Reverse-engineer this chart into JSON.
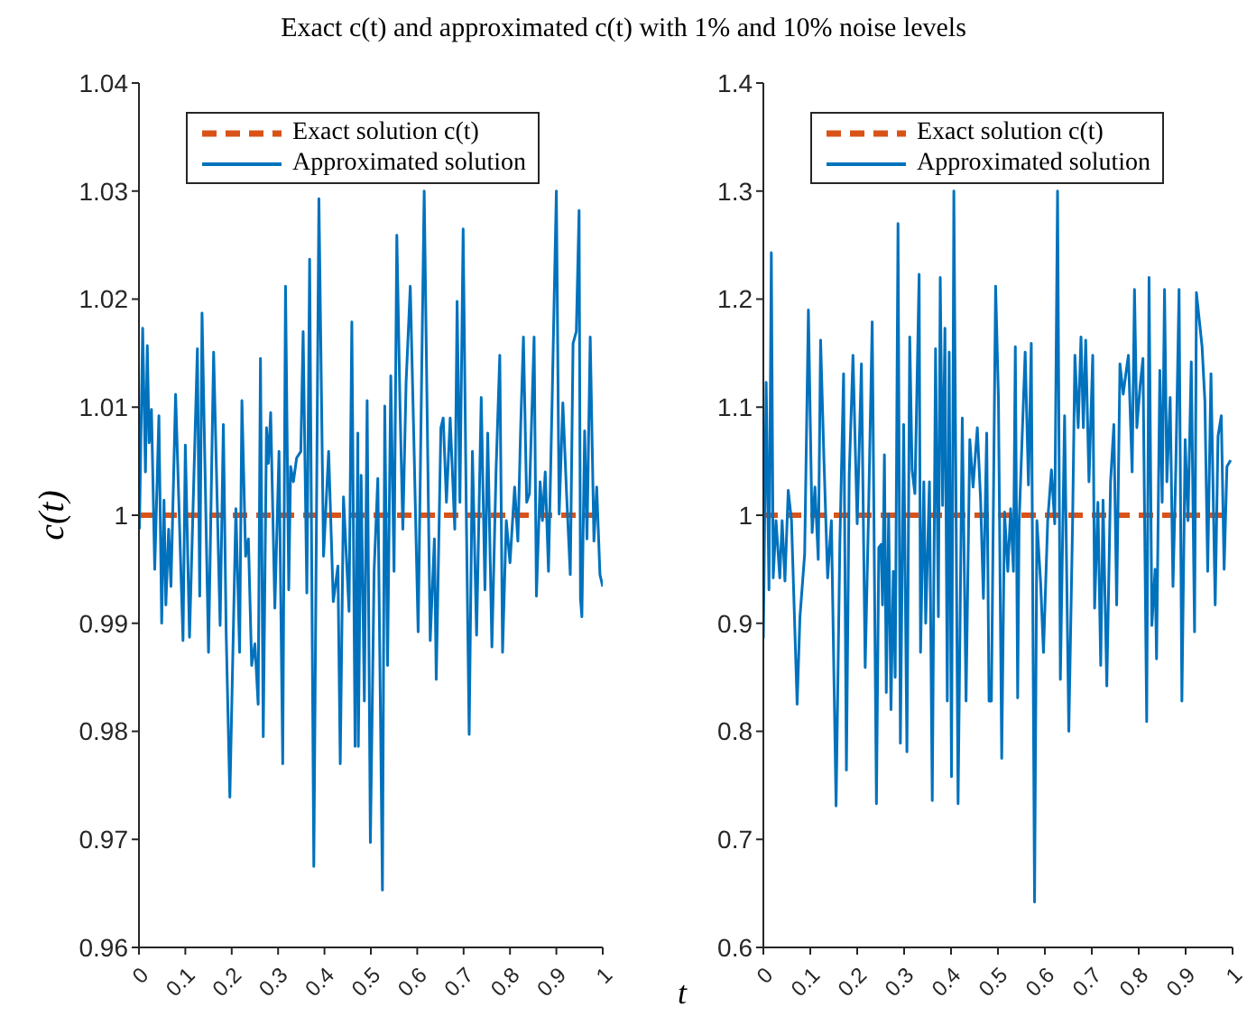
{
  "chart_data": [
    {
      "type": "line",
      "title": "Exact c(t) and approximated c(t) with 1% and 10% noise levels",
      "xlabel": "t",
      "ylabel": "c(t)",
      "legend": "top",
      "xlim": [
        0,
        1
      ],
      "xticks": [
        0,
        0.1,
        0.2,
        0.3,
        0.4,
        0.5,
        0.6,
        0.7,
        0.8,
        0.9,
        1
      ],
      "ylim": [
        0.96,
        1.04
      ],
      "yticks": [
        0.96,
        0.97,
        0.98,
        0.99,
        1,
        1.01,
        1.02,
        1.03,
        1.04
      ],
      "series": [
        {
          "name": "Exact solution c(t)",
          "color": "#d95319",
          "line_style": "dashed",
          "x": [
            0,
            1
          ],
          "values": [
            1,
            1
          ]
        },
        {
          "name": "Approximated solution",
          "color": "#0072bd",
          "line_style": "solid",
          "x": [
            0.001,
            0.008,
            0.014,
            0.018,
            0.022,
            0.027,
            0.034,
            0.043,
            0.049,
            0.054,
            0.058,
            0.064,
            0.069,
            0.079,
            0.095,
            0.1,
            0.109,
            0.126,
            0.131,
            0.136,
            0.15,
            0.161,
            0.175,
            0.182,
            0.188,
            0.196,
            0.209,
            0.217,
            0.222,
            0.23,
            0.236,
            0.243,
            0.25,
            0.257,
            0.262,
            0.268,
            0.275,
            0.279,
            0.284,
            0.293,
            0.302,
            0.31,
            0.316,
            0.323,
            0.327,
            0.333,
            0.34,
            0.349,
            0.354,
            0.362,
            0.368,
            0.377,
            0.388,
            0.398,
            0.409,
            0.419,
            0.429,
            0.434,
            0.441,
            0.453,
            0.459,
            0.466,
            0.472,
            0.473,
            0.479,
            0.486,
            0.492,
            0.499,
            0.507,
            0.515,
            0.525,
            0.53,
            0.536,
            0.543,
            0.55,
            0.556,
            0.563,
            0.569,
            0.576,
            0.585,
            0.593,
            0.602,
            0.615,
            0.628,
            0.637,
            0.641,
            0.651,
            0.656,
            0.663,
            0.671,
            0.681,
            0.686,
            0.692,
            0.699,
            0.706,
            0.712,
            0.719,
            0.728,
            0.738,
            0.746,
            0.752,
            0.761,
            0.77,
            0.778,
            0.784,
            0.792,
            0.8,
            0.81,
            0.817,
            0.823,
            0.829,
            0.836,
            0.842,
            0.852,
            0.857,
            0.865,
            0.87,
            0.876,
            0.883,
            0.891,
            0.9,
            0.906,
            0.914,
            0.922,
            0.93,
            0.936,
            0.943,
            0.949,
            0.952,
            0.955,
            0.961,
            0.966,
            0.973,
            0.981,
            0.987,
            0.994,
            1.0
          ],
          "values": [
            0.9987,
            1.0173,
            1.004,
            1.0157,
            1.0067,
            1.0098,
            0.995,
            1.0092,
            0.99,
            1.0014,
            0.9917,
            0.9987,
            0.9934,
            1.0112,
            0.9884,
            1.0065,
            0.9887,
            1.0154,
            0.9925,
            1.0187,
            0.9873,
            1.0151,
            0.9898,
            1.0084,
            0.9892,
            0.9739,
            1.0006,
            0.9873,
            1.0106,
            0.9962,
            0.9978,
            0.9861,
            0.9881,
            0.9825,
            1.0145,
            0.9795,
            1.0081,
            1.0048,
            1.0095,
            0.9914,
            1.0059,
            0.977,
            1.0212,
            0.9931,
            1.0045,
            1.0031,
            1.0053,
            1.0059,
            1.017,
            0.9928,
            1.0237,
            0.9675,
            1.0293,
            0.9962,
            1.0059,
            0.992,
            0.9953,
            0.977,
            1.0017,
            0.9911,
            1.0179,
            0.9786,
            1.0076,
            0.9786,
            1.0037,
            0.9828,
            1.0106,
            0.9697,
            0.9948,
            1.0034,
            0.9653,
            1.0101,
            0.9861,
            1.0129,
            0.9948,
            1.0259,
            1.0098,
            0.9987,
            1.0123,
            1.0212,
            1.0065,
            0.9892,
            1.03,
            0.9884,
            0.9978,
            0.9848,
            1.0081,
            1.009,
            1.0012,
            1.009,
            0.9987,
            1.0198,
            1.0012,
            1.0265,
            0.9995,
            0.9797,
            1.0059,
            0.9889,
            1.0109,
            0.9931,
            1.0076,
            0.9878,
            1.0042,
            1.0148,
            0.9873,
            0.9995,
            0.9956,
            1.0026,
            0.9976,
            1.0081,
            1.0165,
            1.0012,
            1.002,
            1.0165,
            0.9925,
            1.0031,
            0.9995,
            1.004,
            0.9948,
            1.0109,
            1.03,
            1.0001,
            1.0104,
            1.002,
            0.9945,
            1.0159,
            1.017,
            1.0282,
            0.9923,
            0.9906,
            1.0078,
            0.9978,
            1.0165,
            0.9976,
            1.0026,
            0.9945,
            0.9934
          ]
        }
      ]
    },
    {
      "type": "line",
      "legend": "top",
      "xlim": [
        0,
        1
      ],
      "xticks": [
        0,
        0.1,
        0.2,
        0.3,
        0.4,
        0.5,
        0.6,
        0.7,
        0.8,
        0.9,
        1
      ],
      "ylim": [
        0.6,
        1.4
      ],
      "yticks": [
        0.6,
        0.7,
        0.8,
        0.9,
        1,
        1.1,
        1.2,
        1.3,
        1.4
      ],
      "series": [
        {
          "name": "Exact solution c(t)",
          "color": "#d95319",
          "line_style": "dashed",
          "x": [
            0,
            1
          ],
          "values": [
            1,
            1
          ]
        },
        {
          "name": "Approximated solution",
          "color": "#0072bd",
          "line_style": "solid",
          "x": [
            0,
            0.006,
            0.012,
            0.017,
            0.021,
            0.027,
            0.035,
            0.04,
            0.046,
            0.053,
            0.06,
            0.072,
            0.078,
            0.088,
            0.096,
            0.104,
            0.11,
            0.117,
            0.122,
            0.129,
            0.137,
            0.145,
            0.155,
            0.163,
            0.171,
            0.177,
            0.183,
            0.191,
            0.2,
            0.209,
            0.217,
            0.224,
            0.232,
            0.241,
            0.246,
            0.251,
            0.254,
            0.258,
            0.262,
            0.267,
            0.272,
            0.277,
            0.281,
            0.287,
            0.292,
            0.299,
            0.306,
            0.312,
            0.317,
            0.323,
            0.332,
            0.335,
            0.342,
            0.346,
            0.354,
            0.36,
            0.367,
            0.373,
            0.377,
            0.382,
            0.387,
            0.392,
            0.396,
            0.401,
            0.406,
            0.415,
            0.424,
            0.432,
            0.44,
            0.447,
            0.456,
            0.463,
            0.469,
            0.476,
            0.481,
            0.486,
            0.495,
            0.501,
            0.508,
            0.514,
            0.521,
            0.527,
            0.533,
            0.537,
            0.542,
            0.545,
            0.553,
            0.558,
            0.565,
            0.571,
            0.578,
            0.583,
            0.591,
            0.597,
            0.606,
            0.614,
            0.621,
            0.627,
            0.633,
            0.642,
            0.651,
            0.659,
            0.664,
            0.671,
            0.677,
            0.682,
            0.687,
            0.694,
            0.702,
            0.706,
            0.713,
            0.719,
            0.724,
            0.732,
            0.74,
            0.747,
            0.753,
            0.76,
            0.767,
            0.772,
            0.778,
            0.786,
            0.791,
            0.796,
            0.803,
            0.809,
            0.817,
            0.822,
            0.828,
            0.835,
            0.838,
            0.845,
            0.85,
            0.855,
            0.86,
            0.867,
            0.873,
            0.879,
            0.886,
            0.892,
            0.899,
            0.905,
            0.912,
            0.919,
            0.923,
            0.929,
            0.935,
            0.941,
            0.947,
            0.954,
            0.963,
            0.969,
            0.976,
            0.982,
            0.988,
            0.996
          ],
          "values": [
            0.886,
            1.123,
            0.931,
            1.243,
            0.942,
            0.995,
            0.942,
            0.995,
            0.939,
            1.023,
            0.995,
            0.825,
            0.906,
            0.964,
            1.19,
            0.984,
            1.026,
            0.959,
            1.162,
            1.053,
            0.942,
            0.995,
            0.731,
            0.973,
            1.131,
            0.764,
            1.037,
            1.148,
            0.992,
            1.14,
            0.859,
            0.998,
            1.179,
            0.733,
            0.97,
            0.973,
            0.917,
            1.056,
            0.836,
            1.001,
            0.82,
            0.948,
            0.85,
            1.27,
            0.789,
            1.084,
            0.781,
            1.165,
            1.042,
            1.02,
            1.223,
            0.873,
            1.031,
            0.9,
            1.031,
            0.736,
            1.154,
            0.906,
            1.22,
            1.009,
            1.173,
            0.828,
            1.151,
            0.758,
            1.3,
            0.733,
            1.09,
            0.828,
            1.07,
            1.026,
            1.081,
            1.014,
            0.923,
            1.076,
            0.828,
            0.828,
            1.212,
            1.109,
            0.775,
            1.003,
            0.948,
            1.006,
            0.948,
            1.156,
            0.831,
            0.992,
            1.09,
            1.151,
            1.028,
            1.159,
            0.642,
            0.995,
            0.937,
            0.873,
            0.995,
            1.042,
            0.992,
            1.3,
            0.848,
            1.092,
            0.8,
            0.992,
            1.148,
            1.081,
            1.165,
            1.081,
            1.162,
            1.031,
            1.148,
            0.914,
            1.012,
            0.861,
            1.014,
            0.842,
            1.031,
            1.084,
            0.917,
            1.14,
            1.112,
            1.129,
            1.148,
            1.04,
            1.209,
            1.081,
            1.12,
            1.145,
            0.809,
            1.22,
            0.898,
            0.95,
            0.867,
            1.134,
            1.012,
            1.209,
            1.031,
            1.109,
            0.934,
            1.042,
            1.209,
            0.828,
            1.07,
            0.995,
            1.142,
            0.892,
            1.206,
            1.181,
            1.156,
            1.106,
            0.948,
            1.131,
            0.917,
            1.073,
            1.092,
            0.95,
            1.045,
            1.051
          ]
        }
      ]
    }
  ]
}
